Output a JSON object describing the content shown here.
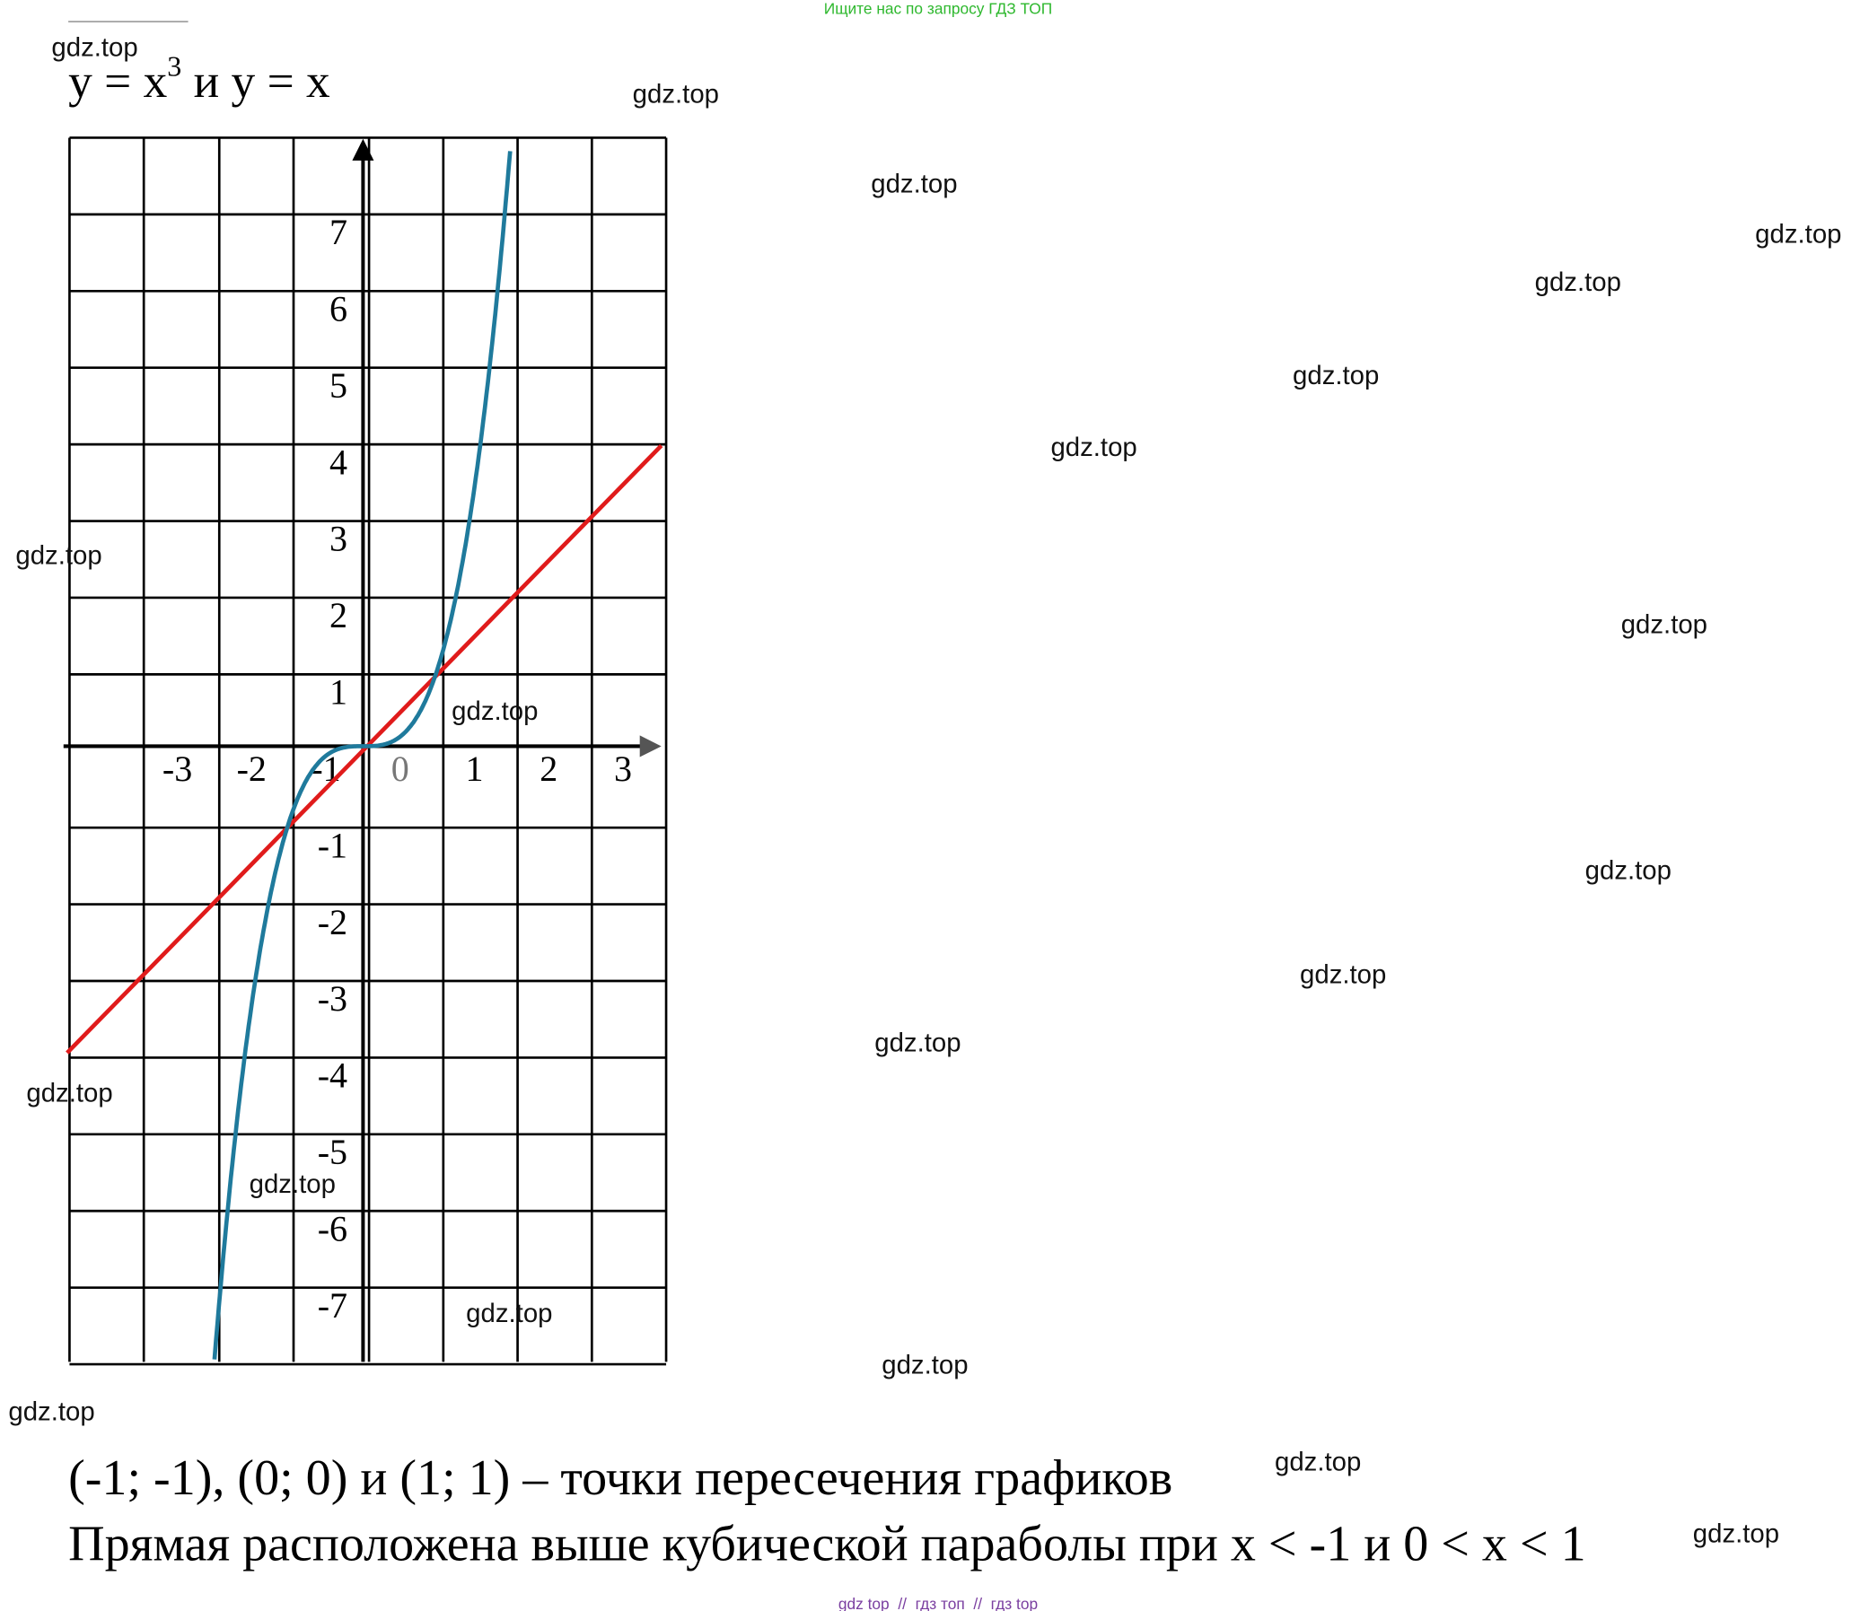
{
  "header": {
    "note": "Ищите нас по запросу ГДЗ ТОП",
    "title": {
      "base": "y = x",
      "power": "3",
      "rest": " и y = x"
    }
  },
  "graph": {
    "y_labels": [
      7,
      6,
      5,
      4,
      3,
      2,
      1,
      -1,
      -2,
      -3,
      -4,
      -5,
      -6,
      -7
    ],
    "x_labels": [
      -3,
      -2,
      -1,
      0,
      1,
      2,
      3
    ]
  },
  "answer": [
    "(-1; -1), (0; 0) и (1; 1) – точки пересечения графиков",
    "Прямая расположена выше кубической параболы при x < -1 и 0 < x < 1"
  ],
  "watermarks": [
    "gdz.top",
    "gdz.top",
    "gdz.top",
    "gdz.top",
    "gdz.top",
    "gdz.top",
    "gdz.top",
    "gdz.top",
    "gdz.top",
    "gdz.top",
    "gdz.top",
    "gdz.top",
    "gdz.top",
    "gdz.top",
    "gdz.top",
    "gdz.top",
    "gdz.top",
    "gdz.top",
    "gdz.top",
    "gdz.top"
  ],
  "footer": "gdz top  //  гдз топ  //  гдз top"
}
